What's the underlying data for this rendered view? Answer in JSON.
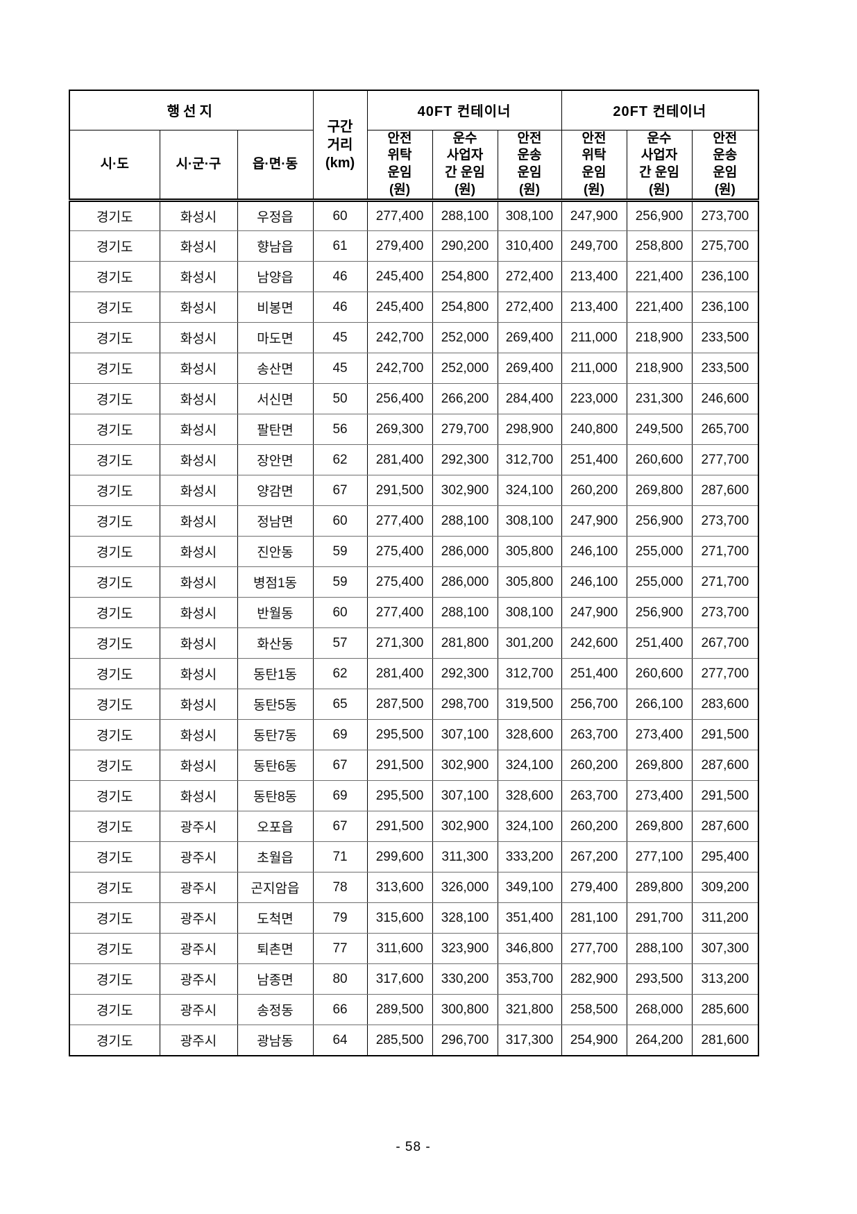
{
  "page": {
    "footer_page_number": "- 58 -"
  },
  "table": {
    "header": {
      "destination_group": "행선지",
      "distance": "구간\n거리\n(km)",
      "container_40ft": "40FT 컨테이너",
      "container_20ft": "20FT 컨테이너",
      "sido": "시·도",
      "sigungu": "시·군·구",
      "eupmyeondong": "읍·면·동",
      "fare_columns": {
        "safe_consign": "안전\n위탁\n운임\n(원)",
        "carrier": "운수\n사업자\n간 운임\n(원)",
        "safe_transport": "안전\n운송\n운임\n(원)"
      }
    },
    "rows": [
      [
        "경기도",
        "화성시",
        "우정읍",
        "60",
        "277,400",
        "288,100",
        "308,100",
        "247,900",
        "256,900",
        "273,700"
      ],
      [
        "경기도",
        "화성시",
        "향남읍",
        "61",
        "279,400",
        "290,200",
        "310,400",
        "249,700",
        "258,800",
        "275,700"
      ],
      [
        "경기도",
        "화성시",
        "남양읍",
        "46",
        "245,400",
        "254,800",
        "272,400",
        "213,400",
        "221,400",
        "236,100"
      ],
      [
        "경기도",
        "화성시",
        "비봉면",
        "46",
        "245,400",
        "254,800",
        "272,400",
        "213,400",
        "221,400",
        "236,100"
      ],
      [
        "경기도",
        "화성시",
        "마도면",
        "45",
        "242,700",
        "252,000",
        "269,400",
        "211,000",
        "218,900",
        "233,500"
      ],
      [
        "경기도",
        "화성시",
        "송산면",
        "45",
        "242,700",
        "252,000",
        "269,400",
        "211,000",
        "218,900",
        "233,500"
      ],
      [
        "경기도",
        "화성시",
        "서신면",
        "50",
        "256,400",
        "266,200",
        "284,400",
        "223,000",
        "231,300",
        "246,600"
      ],
      [
        "경기도",
        "화성시",
        "팔탄면",
        "56",
        "269,300",
        "279,700",
        "298,900",
        "240,800",
        "249,500",
        "265,700"
      ],
      [
        "경기도",
        "화성시",
        "장안면",
        "62",
        "281,400",
        "292,300",
        "312,700",
        "251,400",
        "260,600",
        "277,700"
      ],
      [
        "경기도",
        "화성시",
        "양감면",
        "67",
        "291,500",
        "302,900",
        "324,100",
        "260,200",
        "269,800",
        "287,600"
      ],
      [
        "경기도",
        "화성시",
        "정남면",
        "60",
        "277,400",
        "288,100",
        "308,100",
        "247,900",
        "256,900",
        "273,700"
      ],
      [
        "경기도",
        "화성시",
        "진안동",
        "59",
        "275,400",
        "286,000",
        "305,800",
        "246,100",
        "255,000",
        "271,700"
      ],
      [
        "경기도",
        "화성시",
        "병점1동",
        "59",
        "275,400",
        "286,000",
        "305,800",
        "246,100",
        "255,000",
        "271,700"
      ],
      [
        "경기도",
        "화성시",
        "반월동",
        "60",
        "277,400",
        "288,100",
        "308,100",
        "247,900",
        "256,900",
        "273,700"
      ],
      [
        "경기도",
        "화성시",
        "화산동",
        "57",
        "271,300",
        "281,800",
        "301,200",
        "242,600",
        "251,400",
        "267,700"
      ],
      [
        "경기도",
        "화성시",
        "동탄1동",
        "62",
        "281,400",
        "292,300",
        "312,700",
        "251,400",
        "260,600",
        "277,700"
      ],
      [
        "경기도",
        "화성시",
        "동탄5동",
        "65",
        "287,500",
        "298,700",
        "319,500",
        "256,700",
        "266,100",
        "283,600"
      ],
      [
        "경기도",
        "화성시",
        "동탄7동",
        "69",
        "295,500",
        "307,100",
        "328,600",
        "263,700",
        "273,400",
        "291,500"
      ],
      [
        "경기도",
        "화성시",
        "동탄6동",
        "67",
        "291,500",
        "302,900",
        "324,100",
        "260,200",
        "269,800",
        "287,600"
      ],
      [
        "경기도",
        "화성시",
        "동탄8동",
        "69",
        "295,500",
        "307,100",
        "328,600",
        "263,700",
        "273,400",
        "291,500"
      ],
      [
        "경기도",
        "광주시",
        "오포읍",
        "67",
        "291,500",
        "302,900",
        "324,100",
        "260,200",
        "269,800",
        "287,600"
      ],
      [
        "경기도",
        "광주시",
        "초월읍",
        "71",
        "299,600",
        "311,300",
        "333,200",
        "267,200",
        "277,100",
        "295,400"
      ],
      [
        "경기도",
        "광주시",
        "곤지암읍",
        "78",
        "313,600",
        "326,000",
        "349,100",
        "279,400",
        "289,800",
        "309,200"
      ],
      [
        "경기도",
        "광주시",
        "도척면",
        "79",
        "315,600",
        "328,100",
        "351,400",
        "281,100",
        "291,700",
        "311,200"
      ],
      [
        "경기도",
        "광주시",
        "퇴촌면",
        "77",
        "311,600",
        "323,900",
        "346,800",
        "277,700",
        "288,100",
        "307,300"
      ],
      [
        "경기도",
        "광주시",
        "남종면",
        "80",
        "317,600",
        "330,200",
        "353,700",
        "282,900",
        "293,500",
        "313,200"
      ],
      [
        "경기도",
        "광주시",
        "송정동",
        "66",
        "289,500",
        "300,800",
        "321,800",
        "258,500",
        "268,000",
        "285,600"
      ],
      [
        "경기도",
        "광주시",
        "광남동",
        "64",
        "285,500",
        "296,700",
        "317,300",
        "254,900",
        "264,200",
        "281,600"
      ]
    ]
  }
}
